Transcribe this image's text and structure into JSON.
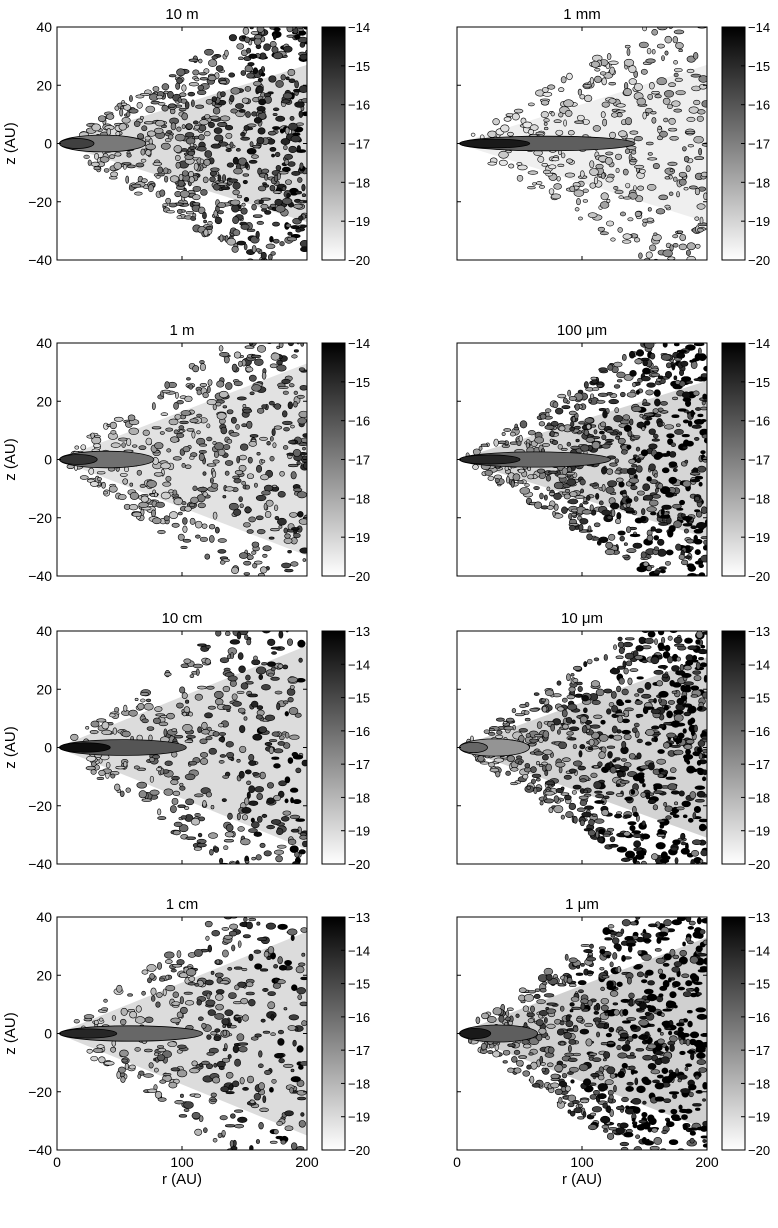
{
  "figure": {
    "panels": [
      {
        "title": "10 m",
        "cb_ticks": [
          -14,
          -15,
          -16,
          -17,
          -18,
          -19,
          -20
        ],
        "core": {
          "dark": 0.75,
          "extent": 0.3
        },
        "halo": {
          "spread": 0.55,
          "density": 0.8,
          "tone": 0.55
        }
      },
      {
        "title": "1 mm",
        "cb_ticks": [
          -14,
          -15,
          -16,
          -17,
          -18,
          -19,
          -20
        ],
        "core": {
          "dark": 0.9,
          "extent": 0.85
        },
        "halo": {
          "spread": 0.55,
          "density": 0.45,
          "tone": 0.25
        }
      },
      {
        "title": "1 m",
        "cb_ticks": [
          -14,
          -15,
          -16,
          -17,
          -18,
          -19,
          -20
        ],
        "core": {
          "dark": 0.8,
          "extent": 0.35
        },
        "halo": {
          "spread": 0.7,
          "density": 0.6,
          "tone": 0.45
        }
      },
      {
        "title": "100 μm",
        "cb_ticks": [
          -14,
          -15,
          -16,
          -17,
          -18,
          -19,
          -20
        ],
        "core": {
          "dark": 0.85,
          "extent": 0.7
        },
        "halo": {
          "spread": 0.55,
          "density": 0.85,
          "tone": 0.65
        }
      },
      {
        "title": "10 cm",
        "cb_ticks": [
          -13,
          -14,
          -15,
          -16,
          -17,
          -18,
          -19,
          -20
        ],
        "core": {
          "dark": 0.95,
          "extent": 0.55
        },
        "halo": {
          "spread": 0.75,
          "density": 0.55,
          "tone": 0.55
        }
      },
      {
        "title": "10 μm",
        "cb_ticks": [
          -13,
          -14,
          -15,
          -16,
          -17,
          -18,
          -19,
          -20
        ],
        "core": {
          "dark": 0.6,
          "extent": 0.2
        },
        "halo": {
          "spread": 0.65,
          "density": 0.9,
          "tone": 0.7
        }
      },
      {
        "title": "1 cm",
        "cb_ticks": [
          -13,
          -14,
          -15,
          -16,
          -17,
          -18,
          -19,
          -20
        ],
        "core": {
          "dark": 0.85,
          "extent": 0.65
        },
        "halo": {
          "spread": 0.75,
          "density": 0.5,
          "tone": 0.55
        }
      },
      {
        "title": "1 μm",
        "cb_ticks": [
          -13,
          -14,
          -15,
          -16,
          -17,
          -18,
          -19,
          -20
        ],
        "core": {
          "dark": 0.9,
          "extent": 0.25
        },
        "halo": {
          "spread": 0.7,
          "density": 0.9,
          "tone": 0.75
        }
      }
    ]
  },
  "chart_data": {
    "type": "heatmap",
    "xlabel": "r (AU)",
    "ylabel": "z (AU)",
    "xlim": [
      0,
      200
    ],
    "ylim": [
      -40,
      40
    ],
    "x_ticks": [
      0,
      100,
      200
    ],
    "y_ticks": [
      40,
      20,
      0,
      -20,
      -40
    ],
    "colormap": "gray (white = low, black = high)",
    "colors": {
      "frame": "#000000",
      "low": "#ffffff",
      "high": "#000000"
    }
  }
}
